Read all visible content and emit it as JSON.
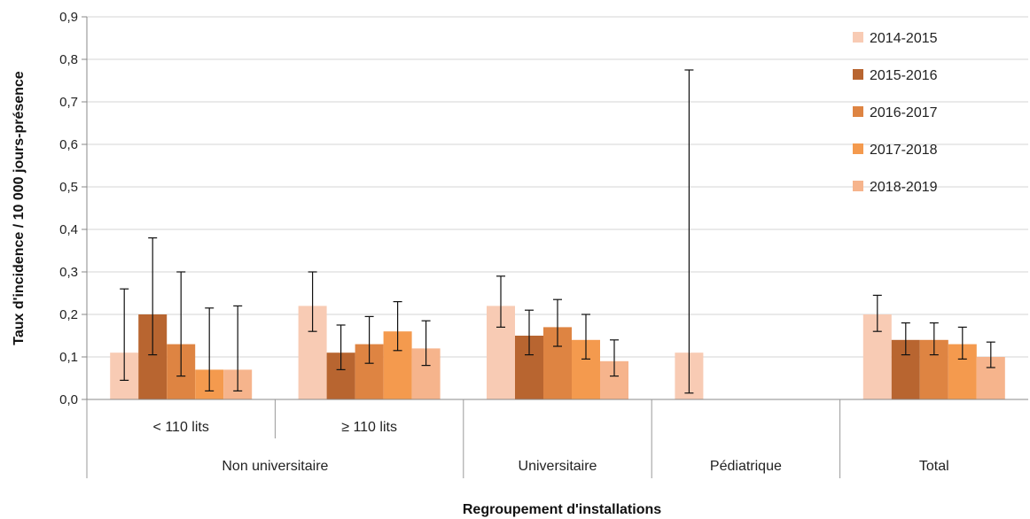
{
  "chart_data": {
    "type": "bar",
    "title": "",
    "xlabel": "Regroupement d'installations",
    "ylabel": "Taux d'incidence / 10 000 jours-présence",
    "ylim": [
      0,
      0.9
    ],
    "yticks": [
      "0,0",
      "0,1",
      "0,2",
      "0,3",
      "0,4",
      "0,5",
      "0,6",
      "0,7",
      "0,8",
      "0,9"
    ],
    "grid": true,
    "legend_position": "top-right",
    "categories": [
      "< 110 lits",
      "≥ 110 lits",
      "Universitaire",
      "Pédiatrique",
      "Total"
    ],
    "groups": [
      {
        "label": "Non universitaire",
        "categories": [
          "< 110 lits",
          "≥ 110 lits"
        ]
      },
      {
        "label": "Universitaire",
        "categories": [
          "Universitaire"
        ]
      },
      {
        "label": "Pédiatrique",
        "categories": [
          "Pédiatrique"
        ]
      },
      {
        "label": "Total",
        "categories": [
          "Total"
        ]
      }
    ],
    "series": [
      {
        "name": "2014-2015",
        "color": "#f8cbb4",
        "values": [
          0.11,
          0.22,
          0.22,
          0.11,
          0.2
        ],
        "err_low": [
          0.045,
          0.16,
          0.17,
          0.015,
          0.16
        ],
        "err_high": [
          0.26,
          0.3,
          0.29,
          0.775,
          0.245
        ]
      },
      {
        "name": "2015-2016",
        "color": "#b86530",
        "values": [
          0.2,
          0.11,
          0.15,
          null,
          0.14
        ],
        "err_low": [
          0.105,
          0.07,
          0.105,
          null,
          0.105
        ],
        "err_high": [
          0.38,
          0.175,
          0.21,
          null,
          0.18
        ]
      },
      {
        "name": "2016-2017",
        "color": "#de8442",
        "values": [
          0.13,
          0.13,
          0.17,
          null,
          0.14
        ],
        "err_low": [
          0.055,
          0.085,
          0.125,
          null,
          0.105
        ],
        "err_high": [
          0.3,
          0.195,
          0.235,
          null,
          0.18
        ]
      },
      {
        "name": "2017-2018",
        "color": "#f49a4e",
        "values": [
          0.07,
          0.16,
          0.14,
          null,
          0.13
        ],
        "err_low": [
          0.02,
          0.115,
          0.095,
          null,
          0.095
        ],
        "err_high": [
          0.215,
          0.23,
          0.2,
          null,
          0.17
        ]
      },
      {
        "name": "2018-2019",
        "color": "#f6b48c",
        "values": [
          0.07,
          0.12,
          0.09,
          null,
          0.1
        ],
        "err_low": [
          0.02,
          0.08,
          0.055,
          null,
          0.075
        ],
        "err_high": [
          0.22,
          0.185,
          0.14,
          null,
          0.135
        ]
      }
    ]
  }
}
